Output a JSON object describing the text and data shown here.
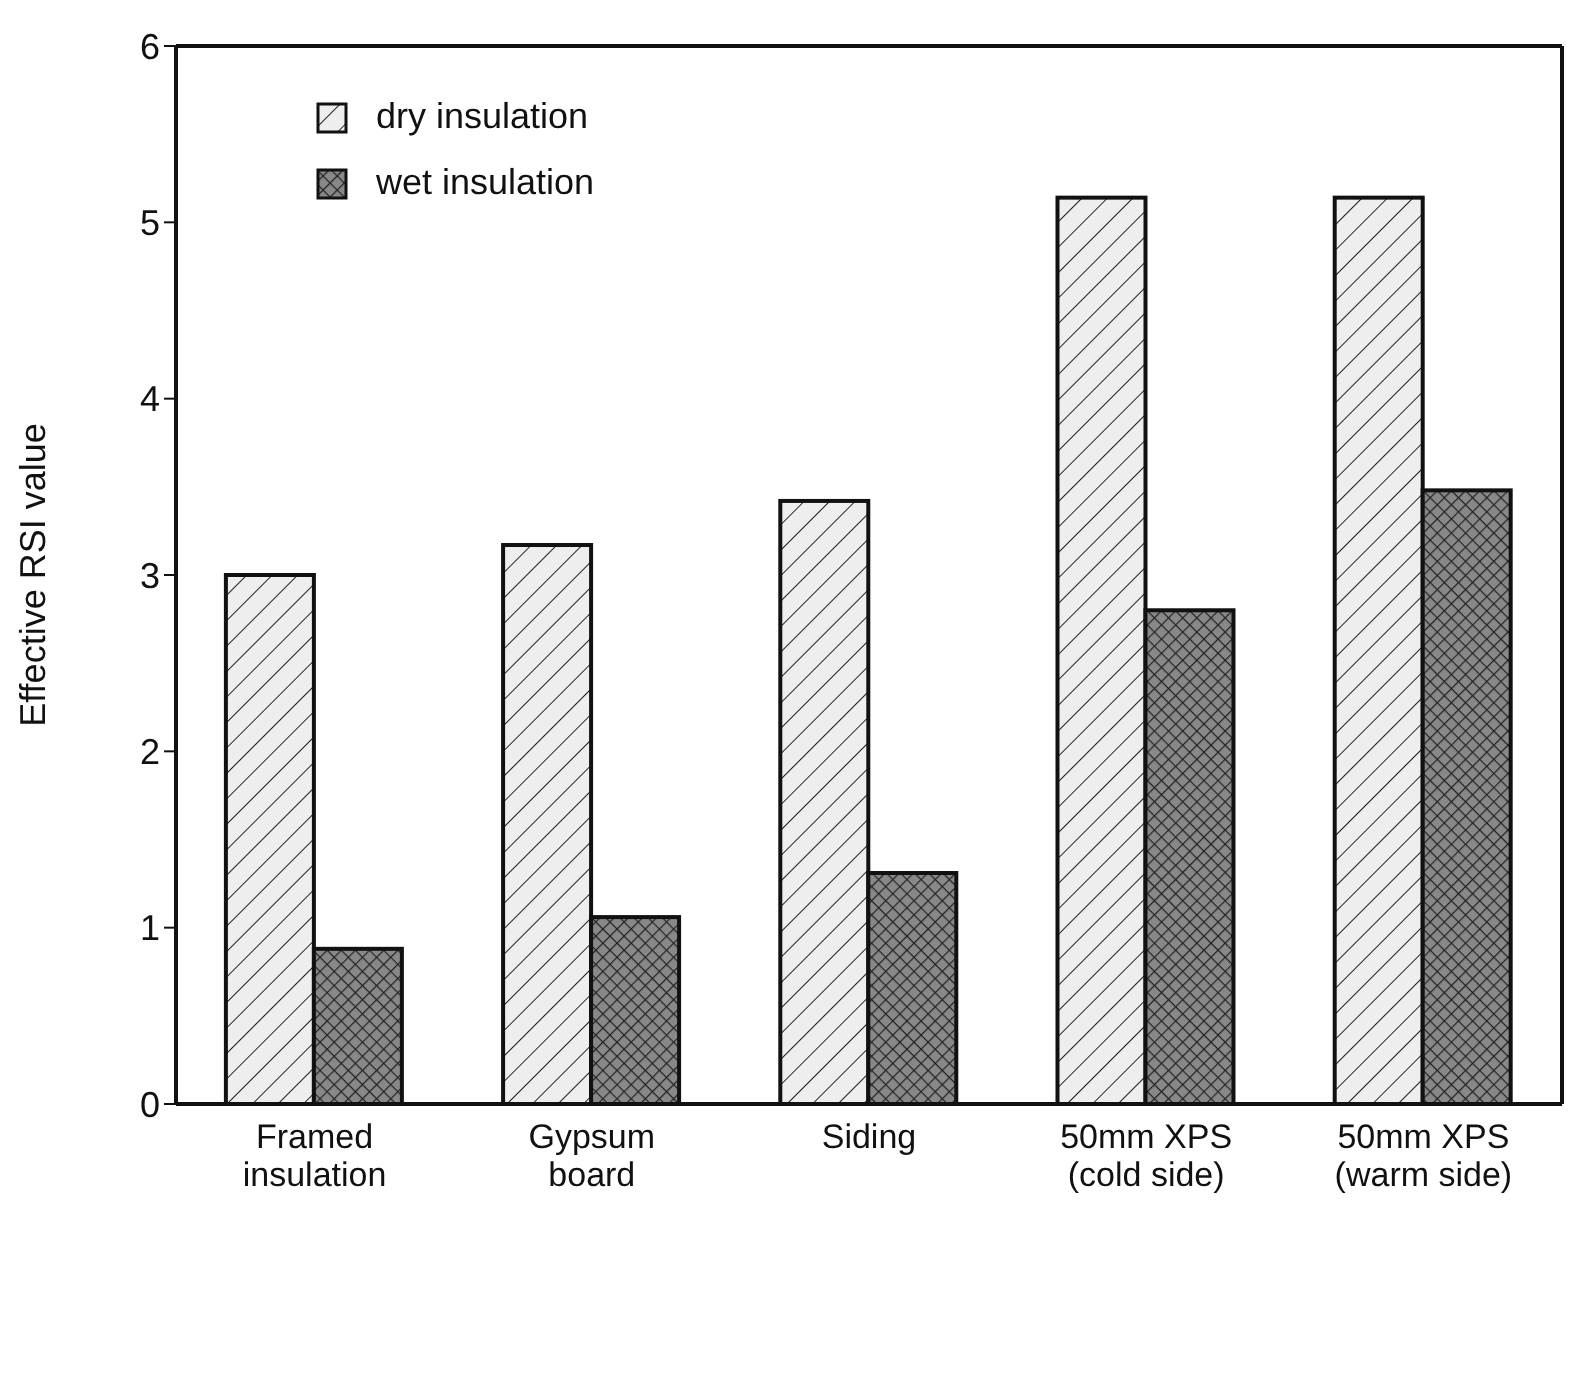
{
  "chart_data": {
    "type": "bar",
    "ylabel": "Effective RSI value",
    "categories": [
      "Framed\ninsulation",
      "Gypsum\nboard",
      "Siding",
      "50mm XPS\n(cold side)",
      "50mm XPS\n(warm side)"
    ],
    "series": [
      {
        "name": "dry insulation",
        "color": "#eeeeee",
        "values": [
          3.0,
          3.17,
          3.42,
          5.14,
          5.14
        ]
      },
      {
        "name": "wet insulation",
        "color": "#888888",
        "values": [
          0.88,
          1.06,
          1.31,
          2.8,
          3.48
        ]
      }
    ],
    "ylim": [
      0,
      6
    ],
    "yticks": [
      0,
      1,
      2,
      3,
      4,
      5,
      6
    ],
    "grid": false,
    "legend": "top left"
  }
}
